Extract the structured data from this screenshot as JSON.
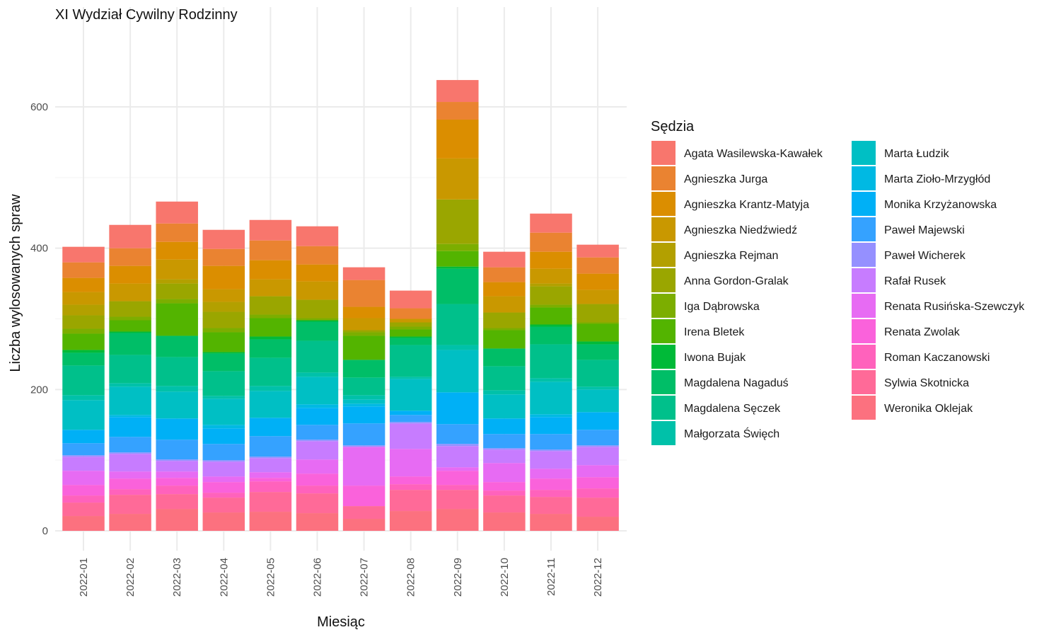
{
  "chart_data": {
    "type": "bar",
    "stacked": true,
    "title": "XI Wydział Cywilny Rodzinny",
    "xlabel": "Miesiąc",
    "ylabel": "Liczba wylosowanych spraw",
    "ylim": [
      0,
      650
    ],
    "yticks": [
      0,
      200,
      400,
      600
    ],
    "grid": true,
    "legend": {
      "title": "Sędzia",
      "position": "right",
      "columns": 2
    },
    "categories": [
      "2022-01",
      "2022-02",
      "2022-03",
      "2022-04",
      "2022-05",
      "2022-06",
      "2022-07",
      "2022-08",
      "2022-09",
      "2022-10",
      "2022-11",
      "2022-12"
    ],
    "series": [
      {
        "name": "Agata Wasilewska-Kawałek",
        "color": "#F8766D",
        "values": [
          22,
          33,
          31,
          27,
          29,
          28,
          18,
          25,
          31,
          22,
          27,
          18
        ]
      },
      {
        "name": "Agnieszka Jurga",
        "color": "#EA8331",
        "values": [
          22,
          25,
          26,
          24,
          28,
          26,
          38,
          15,
          25,
          21,
          27,
          23
        ]
      },
      {
        "name": "Agnieszka Krantz-Matyja",
        "color": "#DB8E00",
        "values": [
          20,
          25,
          25,
          33,
          27,
          24,
          16,
          0,
          55,
          20,
          24,
          23
        ]
      },
      {
        "name": "Agnieszka Niedźwiedź",
        "color": "#C99800",
        "values": [
          18,
          25,
          28,
          18,
          24,
          26,
          17,
          5,
          58,
          23,
          21,
          20
        ]
      },
      {
        "name": "Agnieszka Rejman",
        "color": "#B3A000",
        "values": [
          15,
          0,
          6,
          14,
          0,
          0,
          0,
          0,
          0,
          0,
          4,
          0
        ]
      },
      {
        "name": "Anna Gordon-Gralak",
        "color": "#9AA600",
        "values": [
          19,
          22,
          22,
          23,
          26,
          26,
          3,
          6,
          63,
          22,
          26,
          26
        ]
      },
      {
        "name": "Iga Dąbrowska",
        "color": "#7CAE00",
        "values": [
          7,
          5,
          6,
          6,
          5,
          3,
          5,
          4,
          10,
          3,
          4,
          2
        ]
      },
      {
        "name": "Irena Bletek",
        "color": "#53B400",
        "values": [
          23,
          16,
          46,
          28,
          26,
          0,
          34,
          10,
          22,
          26,
          24,
          25
        ]
      },
      {
        "name": "Iwona Bujak",
        "color": "#00BA38",
        "values": [
          4,
          2,
          0,
          2,
          4,
          2,
          0,
          2,
          3,
          0,
          3,
          4
        ]
      },
      {
        "name": "Magdalena Nagaduś",
        "color": "#00BE67",
        "values": [
          18,
          31,
          30,
          25,
          26,
          27,
          25,
          10,
          50,
          25,
          25,
          22
        ]
      },
      {
        "name": "Magdalena Sęczek",
        "color": "#00C08B",
        "values": [
          42,
          40,
          41,
          35,
          40,
          45,
          25,
          45,
          58,
          34,
          48,
          38
        ]
      },
      {
        "name": "Małgorzata Święch",
        "color": "#00C1A9",
        "values": [
          7,
          5,
          8,
          4,
          7,
          6,
          6,
          3,
          7,
          6,
          5,
          4
        ]
      },
      {
        "name": "Marta Łudzik",
        "color": "#00BFC4",
        "values": [
          42,
          40,
          38,
          37,
          38,
          39,
          6,
          45,
          60,
          34,
          46,
          32
        ]
      },
      {
        "name": "Marta Zioło-Mrzygłód",
        "color": "#00B9E3",
        "values": [
          0,
          3,
          0,
          5,
          0,
          5,
          4,
          0,
          0,
          0,
          4,
          0
        ]
      },
      {
        "name": "Monika Krzyżanowska",
        "color": "#00B0F6",
        "values": [
          19,
          28,
          30,
          22,
          26,
          24,
          24,
          6,
          45,
          22,
          24,
          25
        ]
      },
      {
        "name": "Paweł Majewski",
        "color": "#35A2FF",
        "values": [
          17,
          22,
          28,
          23,
          29,
          21,
          31,
          10,
          28,
          20,
          22,
          22
        ]
      },
      {
        "name": "Paweł Wicherek",
        "color": "#9590FF",
        "values": [
          2,
          2,
          2,
          2,
          2,
          2,
          2,
          2,
          3,
          2,
          2,
          2
        ]
      },
      {
        "name": "Rafał Rusek",
        "color": "#C77CFF",
        "values": [
          20,
          25,
          15,
          21,
          20,
          26,
          0,
          36,
          30,
          19,
          25,
          26
        ]
      },
      {
        "name": "Renata Rusińska-Szewczyk",
        "color": "#E76BF3",
        "values": [
          20,
          10,
          9,
          8,
          8,
          20,
          55,
          39,
          5,
          27,
          14,
          17
        ]
      },
      {
        "name": "Renata Zwolak",
        "color": "#FA62DB",
        "values": [
          15,
          15,
          11,
          15,
          5,
          17,
          29,
          11,
          20,
          12,
          16,
          16
        ]
      },
      {
        "name": "Roman Kaczanowski",
        "color": "#FF62BC",
        "values": [
          10,
          8,
          12,
          7,
          15,
          11,
          0,
          8,
          7,
          7,
          10,
          13
        ]
      },
      {
        "name": "Sylwia Skotnicka",
        "color": "#FF6A98",
        "values": [
          19,
          27,
          21,
          21,
          28,
          28,
          18,
          30,
          27,
          24,
          24,
          27
        ]
      },
      {
        "name": "Weronika Oklejak",
        "color": "#FC717F",
        "values": [
          21,
          24,
          31,
          26,
          27,
          25,
          17,
          28,
          31,
          26,
          24,
          20
        ]
      }
    ]
  }
}
